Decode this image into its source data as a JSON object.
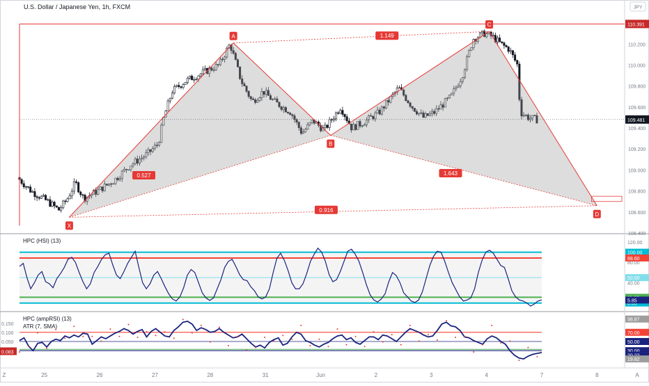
{
  "header": {
    "symbol_title": "U.S. Dollar / Japanese Yen, 1h, FXCM",
    "currency": "JPY"
  },
  "colors": {
    "pattern_line": "#e53935",
    "pattern_fill": "#9e9e9e",
    "up_candle": "#ffffff",
    "down_candle": "#131722",
    "osc_line": "#1a237e",
    "level_blue": "#00bcd4",
    "level_red": "#f44336",
    "level_green": "#4caf50",
    "level_light": "#80deea",
    "label_bg": "#e53935"
  },
  "chart_data": [
    {
      "type": "candlestick",
      "title": "U.S. Dollar / Japanese Yen, 1h, FXCM",
      "ylim": [
        108.4,
        110.5
      ],
      "y_ticks": [
        110.2,
        110.0,
        109.8,
        109.6,
        109.4,
        109.2,
        109.0,
        108.8,
        108.6,
        108.4
      ],
      "y_tick_labels": [
        "110.200",
        "110.000",
        "109.800",
        "109.600",
        "109.400",
        "109.200",
        "109.000",
        "108.800",
        "108.600",
        "108.400"
      ],
      "x_ticks": [
        {
          "label": "25",
          "x": 25
        },
        {
          "label": "26",
          "x": 26
        },
        {
          "label": "27",
          "x": 27
        },
        {
          "label": "28",
          "x": 28
        },
        {
          "label": "31",
          "x": 29
        },
        {
          "label": "Jun",
          "x": 30
        },
        {
          "label": "2",
          "x": 31
        },
        {
          "label": "3",
          "x": 32
        },
        {
          "label": "4",
          "x": 33
        },
        {
          "label": "7",
          "x": 34
        },
        {
          "label": "8",
          "x": 35
        }
      ],
      "x_range": [
        24.55,
        35.5
      ],
      "last_price": 109.481,
      "last_price_label": "109.481",
      "top_level": 110.391,
      "top_level_label": "110.391",
      "anchor_path": [
        [
          24.55,
          108.93
        ],
        [
          24.8,
          108.8
        ],
        [
          25.1,
          108.7
        ],
        [
          25.3,
          108.62
        ],
        [
          25.45,
          108.72
        ],
        [
          25.6,
          108.88
        ],
        [
          25.75,
          108.73
        ],
        [
          26.0,
          108.8
        ],
        [
          26.3,
          108.9
        ],
        [
          26.6,
          109.05
        ],
        [
          26.9,
          109.15
        ],
        [
          27.1,
          109.25
        ],
        [
          27.2,
          109.5
        ],
        [
          27.35,
          109.75
        ],
        [
          27.6,
          109.85
        ],
        [
          28.0,
          109.95
        ],
        [
          28.2,
          110.0
        ],
        [
          28.4,
          110.2
        ],
        [
          28.6,
          109.85
        ],
        [
          28.8,
          109.65
        ],
        [
          29.0,
          109.75
        ],
        [
          29.2,
          109.65
        ],
        [
          29.5,
          109.55
        ],
        [
          29.7,
          109.35
        ],
        [
          29.9,
          109.47
        ],
        [
          30.1,
          109.38
        ],
        [
          30.4,
          109.6
        ],
        [
          30.6,
          109.4
        ],
        [
          30.8,
          109.45
        ],
        [
          31.1,
          109.55
        ],
        [
          31.45,
          109.78
        ],
        [
          31.7,
          109.6
        ],
        [
          31.9,
          109.5
        ],
        [
          32.1,
          109.55
        ],
        [
          32.4,
          109.7
        ],
        [
          32.6,
          109.9
        ],
        [
          32.8,
          110.25
        ],
        [
          33.0,
          110.3
        ],
        [
          33.15,
          110.27
        ],
        [
          33.3,
          110.2
        ],
        [
          33.45,
          110.15
        ],
        [
          33.6,
          110.0
        ],
        [
          33.65,
          109.55
        ],
        [
          33.8,
          109.5
        ],
        [
          33.95,
          109.48
        ]
      ]
    },
    {
      "type": "harmonic-pattern",
      "points": [
        {
          "label": "X",
          "x": 25.45,
          "y": 108.55
        },
        {
          "label": "A",
          "x": 28.42,
          "y": 110.21
        },
        {
          "label": "B",
          "x": 30.18,
          "y": 109.33
        },
        {
          "label": "C",
          "x": 33.05,
          "y": 110.32
        },
        {
          "label": "D",
          "x": 35.0,
          "y": 108.66
        }
      ],
      "ratios": [
        {
          "label": "0.527",
          "x": 26.8,
          "y": 108.95
        },
        {
          "label": "1.149",
          "x": 31.2,
          "y": 110.28
        },
        {
          "label": "1.643",
          "x": 32.35,
          "y": 108.97
        },
        {
          "label": "0.916",
          "x": 30.1,
          "y": 108.62
        }
      ],
      "target_zone": {
        "x1": 34.9,
        "x2": 35.45,
        "y1": 108.7,
        "y2": 108.75
      }
    },
    {
      "type": "line",
      "title": "HPC (HSI) (13)",
      "ylim": [
        -10,
        120
      ],
      "y_ticks": [
        0,
        40,
        80,
        120
      ],
      "y_tick_labels": [
        "0.00",
        "40.00",
        "80.00",
        "120.00"
      ],
      "levels": [
        {
          "value": 100,
          "label": "100.00",
          "color": "#00bcd4"
        },
        {
          "value": 88.6,
          "label": "88.60",
          "color": "#f44336"
        },
        {
          "value": 50,
          "label": "50.00",
          "color": "#80deea"
        },
        {
          "value": 11.3,
          "label": "11.30",
          "color": "#4caf50"
        },
        {
          "value": 0,
          "label": "0.00",
          "color": "#00bcd4"
        }
      ],
      "current_label": "5.85",
      "series": [
        {
          "values": [
            72,
            78,
            50,
            28,
            40,
            55,
            62,
            42,
            38,
            30,
            48,
            58,
            70,
            86,
            90,
            80,
            60,
            42,
            28,
            38,
            60,
            72,
            86,
            95,
            98,
            75,
            55,
            48,
            62,
            78,
            90,
            102,
            70,
            40,
            28,
            38,
            55,
            62,
            48,
            32,
            18,
            8,
            4,
            12,
            30,
            55,
            66,
            60,
            40,
            20,
            10,
            5,
            10,
            28,
            46,
            70,
            82,
            86,
            72,
            56,
            46,
            44,
            32,
            24,
            12,
            8,
            12,
            28,
            60,
            88,
            98,
            84,
            64,
            40,
            28,
            28,
            38,
            58,
            82,
            96,
            108,
            100,
            82,
            56,
            42,
            46,
            62,
            82,
            102,
            106,
            96,
            82,
            60,
            36,
            16,
            6,
            2,
            8,
            18,
            42,
            60,
            54,
            40,
            20,
            12,
            4,
            1,
            6,
            22,
            48,
            74,
            92,
            102,
            100,
            82,
            60,
            40,
            26,
            12,
            4,
            6,
            10,
            28,
            60,
            84,
            100,
            104,
            98,
            86,
            74,
            70,
            48,
            24,
            12,
            6,
            4,
            0,
            -6,
            -2,
            4,
            6
          ]
        }
      ]
    },
    {
      "type": "line",
      "title": "HPC (ampRSI) (13)",
      "subtitle": "ATR (7, SMA)",
      "ylim": [
        0,
        100
      ],
      "y_ticks": [
        0.05,
        0.1,
        0.15
      ],
      "y_tick_labels": [
        "0.050",
        "0.100",
        "0.150"
      ],
      "levels": [
        {
          "value": 70,
          "label": "70.00",
          "color": "#f44336"
        },
        {
          "value": 50,
          "label": "50.00",
          "color": "#1a237e"
        },
        {
          "value": 30,
          "label": "30.00",
          "color": "#1a237e"
        },
        {
          "value": 30,
          "label": "",
          "color": "#4caf50"
        }
      ],
      "labels_right": [
        "98.87",
        "70.00",
        "50.00",
        "30.00",
        "20.22",
        "19.82"
      ],
      "left_value_label": "0.083",
      "series": [
        {
          "values": [
            52,
            58,
            40,
            30,
            46,
            48,
            38,
            50,
            55,
            52,
            62,
            58,
            64,
            60,
            68,
            66,
            44,
            52,
            60,
            56,
            62,
            68,
            72,
            78,
            74,
            66,
            72,
            76,
            60,
            72,
            78,
            70,
            62,
            60,
            74,
            82,
            92,
            94,
            88,
            74,
            80,
            76,
            70,
            72,
            78,
            70,
            64,
            58,
            60,
            66,
            56,
            46,
            38,
            42,
            36,
            48,
            54,
            58,
            42,
            46,
            60,
            70,
            66,
            52,
            48,
            42,
            38,
            44,
            48,
            56,
            62,
            64,
            54,
            58,
            48,
            44,
            52,
            60,
            60,
            54,
            64,
            62,
            56,
            50,
            60,
            70,
            78,
            74,
            70,
            64,
            60,
            62,
            74,
            88,
            92,
            84,
            82,
            74,
            60,
            58,
            52,
            48,
            44,
            56,
            62,
            58,
            50,
            44,
            30,
            20,
            14,
            12,
            18,
            22,
            24,
            26
          ]
        }
      ]
    }
  ]
}
